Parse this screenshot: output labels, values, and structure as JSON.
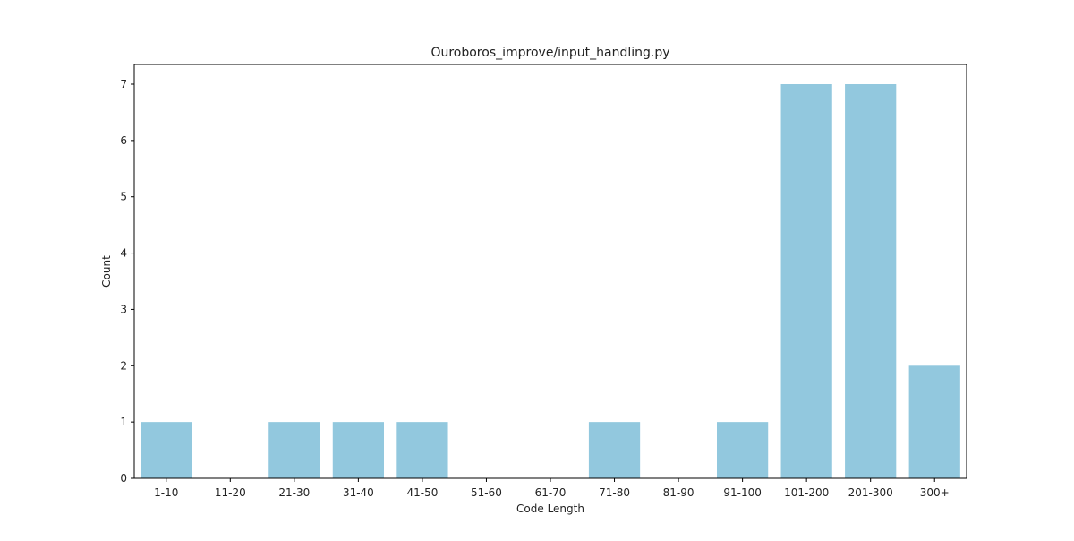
{
  "chart_data": {
    "type": "bar",
    "title": "Ouroboros_improve/input_handling.py",
    "xlabel": "Code Length",
    "ylabel": "Count",
    "categories": [
      "1-10",
      "11-20",
      "21-30",
      "31-40",
      "41-50",
      "51-60",
      "61-70",
      "71-80",
      "81-90",
      "91-100",
      "101-200",
      "201-300",
      "300+"
    ],
    "values": [
      1,
      0,
      1,
      1,
      1,
      0,
      0,
      1,
      0,
      1,
      7,
      7,
      2
    ],
    "ylim": [
      0,
      7.35
    ],
    "yticks": [
      0,
      1,
      2,
      3,
      4,
      5,
      6,
      7
    ],
    "bar_color": "#92c8de",
    "grid": false,
    "legend": "none"
  }
}
